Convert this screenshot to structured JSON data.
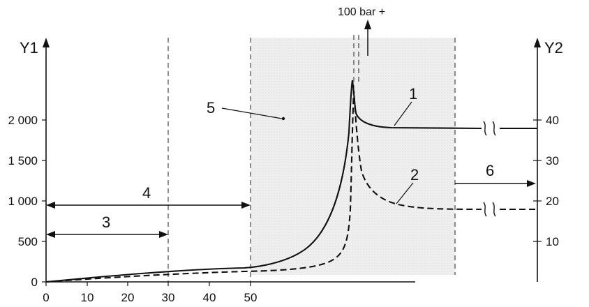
{
  "axes": {
    "y1_title": "Y1",
    "y2_title": "Y2",
    "x_ticks": [
      "0",
      "10",
      "20",
      "30",
      "40",
      "50"
    ],
    "y1_ticks": [
      "0",
      "500",
      "1 000",
      "1 500",
      "2 000"
    ],
    "y2_ticks": [
      "10",
      "20",
      "30",
      "40"
    ]
  },
  "labels": {
    "curve1": "1",
    "curve2": "2",
    "interval3": "3",
    "interval4": "4",
    "shaded_zone5": "5",
    "arrow6": "6",
    "pressure_note": "100 bar +"
  },
  "chart_data": {
    "type": "line",
    "x_ticks": [
      0,
      10,
      20,
      30,
      40,
      50
    ],
    "y1_ticks": [
      0,
      500,
      1000,
      1500,
      2000
    ],
    "y2_ticks": [
      10,
      20,
      30,
      40
    ],
    "series": [
      {
        "name": "1",
        "x": [
          0,
          10,
          20,
          30,
          40,
          50,
          55,
          60,
          65,
          69,
          72,
          74,
          75,
          76,
          77,
          80,
          85,
          90,
          100,
          120
        ],
        "y": [
          0,
          40,
          80,
          120,
          160,
          200,
          230,
          300,
          500,
          900,
          1500,
          2100,
          2500,
          2200,
          2050,
          1980,
          1940,
          1920,
          1910,
          1910
        ]
      },
      {
        "name": "2",
        "x": [
          0,
          10,
          20,
          30,
          40,
          50,
          55,
          60,
          65,
          70,
          73,
          74.5,
          75.5,
          76,
          77,
          78,
          80,
          85,
          90,
          100,
          120
        ],
        "y": [
          0,
          35,
          70,
          105,
          140,
          175,
          190,
          210,
          240,
          320,
          480,
          800,
          1800,
          2500,
          1600,
          1300,
          1100,
          950,
          910,
          900,
          900
        ]
      }
    ]
  }
}
